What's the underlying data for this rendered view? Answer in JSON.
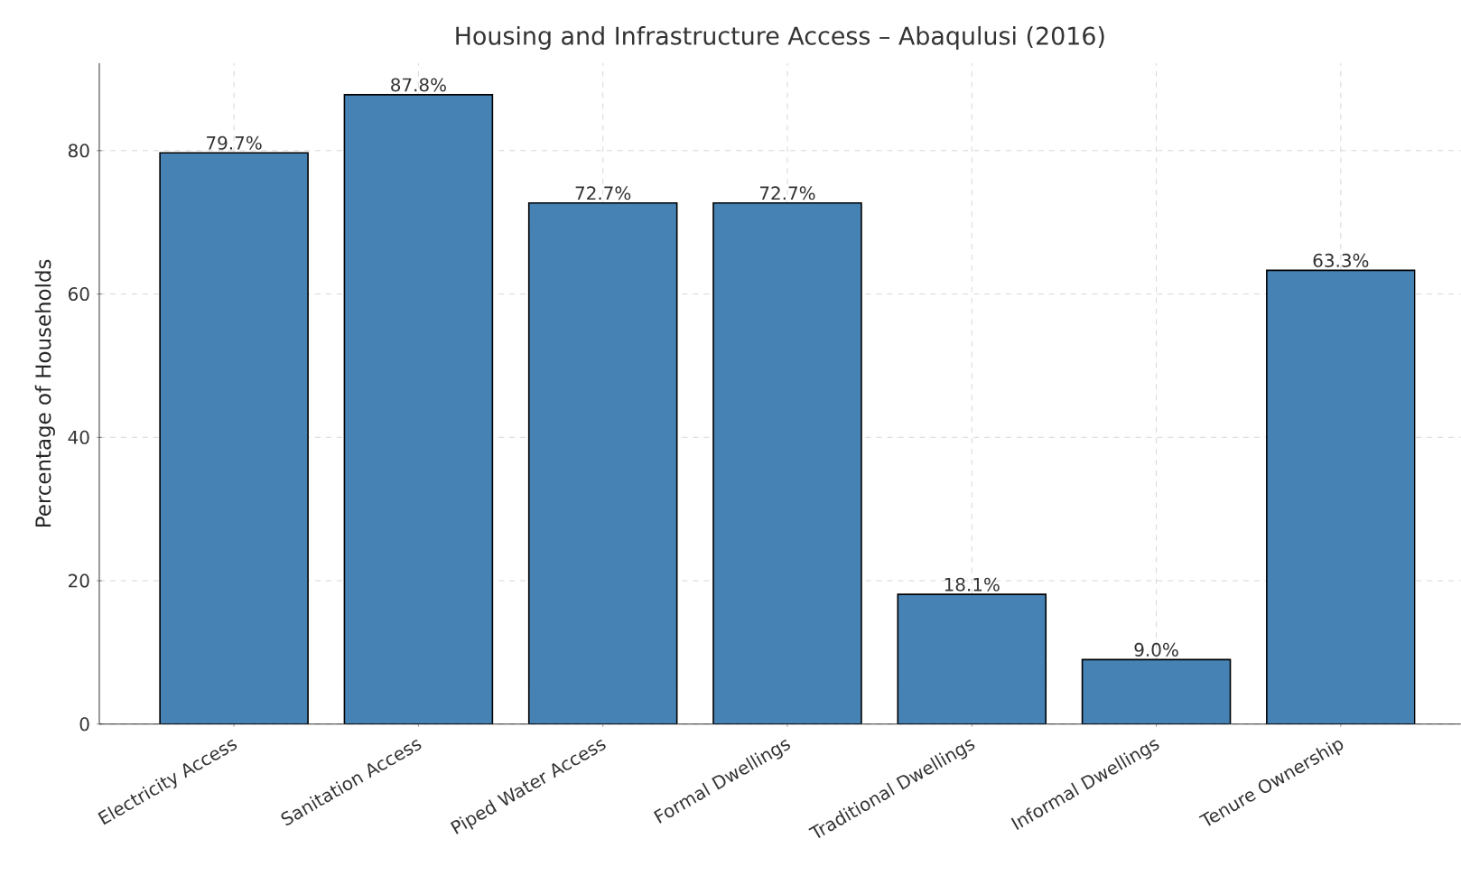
{
  "chart_data": {
    "type": "bar",
    "title": "Housing and Infrastructure Access – Abaqulusi (2016)",
    "ylabel": "Percentage of Households",
    "categories": [
      "Electricity Access",
      "Sanitation Access",
      "Piped Water Access",
      "Formal Dwellings",
      "Traditional Dwellings",
      "Informal Dwellings",
      "Tenure Ownership"
    ],
    "values": [
      79.7,
      87.8,
      72.7,
      72.7,
      18.1,
      9.0,
      63.3
    ],
    "value_labels": [
      "79.7%",
      "87.8%",
      "72.7%",
      "72.7%",
      "18.1%",
      "9.0%",
      "63.3%"
    ],
    "color": "#4682b4",
    "ylim": [
      0,
      92.2
    ],
    "yticks": [
      0,
      20,
      40,
      60,
      80
    ],
    "grid": true
  }
}
